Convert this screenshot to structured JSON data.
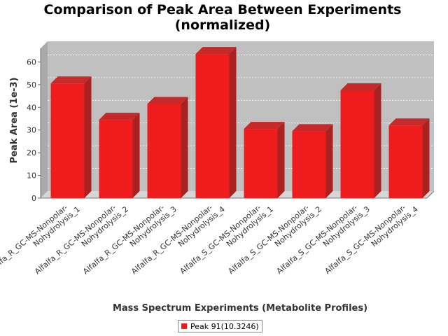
{
  "chart_data": {
    "type": "bar",
    "title_lines": [
      "Comparison of Peak Area Between Experiments",
      "(normalized)"
    ],
    "xlabel": "Mass Spectrum Experiments (Metabolite Profiles)",
    "ylabel": "Peak Area (1e-3)",
    "ylim": [
      0,
      66
    ],
    "yticks": [
      0,
      10,
      20,
      30,
      40,
      50,
      60
    ],
    "grid": true,
    "legend_position": "bottom",
    "categories": [
      [
        "Alfalfa_R_GC-MS-Nonpolar-",
        "Nohydrolysis_1"
      ],
      [
        "Alfalfa_R_GC-MS-Nonpolar-",
        "Nohydrolysis_2"
      ],
      [
        "Alfalfa_R_GC-MS-Nonpolar-",
        "Nohydrolysis_3"
      ],
      [
        "Alfalfa_R_GC-MS-Nonpolar-",
        "Nohydrolysis_4"
      ],
      [
        "Alfalfa_S_GC-MS-Nonpolar-",
        "Nohydrolysis_1"
      ],
      [
        "Alfalfa_S_GC-MS-Nonpolar-",
        "Nohydrolysis_2"
      ],
      [
        "Alfalfa_S_GC-MS-Nonpolar-",
        "Nohydrolysis_3"
      ],
      [
        "Alfalfa_S_GC-MS-Nonpolar-",
        "Nohydrolysis_4"
      ]
    ],
    "series": [
      {
        "name": "Peak 91(10.3246)",
        "color": "#ee1c1c",
        "values": [
          50.5,
          34.5,
          41.5,
          63.5,
          30.5,
          29.5,
          47.5,
          32.0
        ]
      }
    ]
  }
}
